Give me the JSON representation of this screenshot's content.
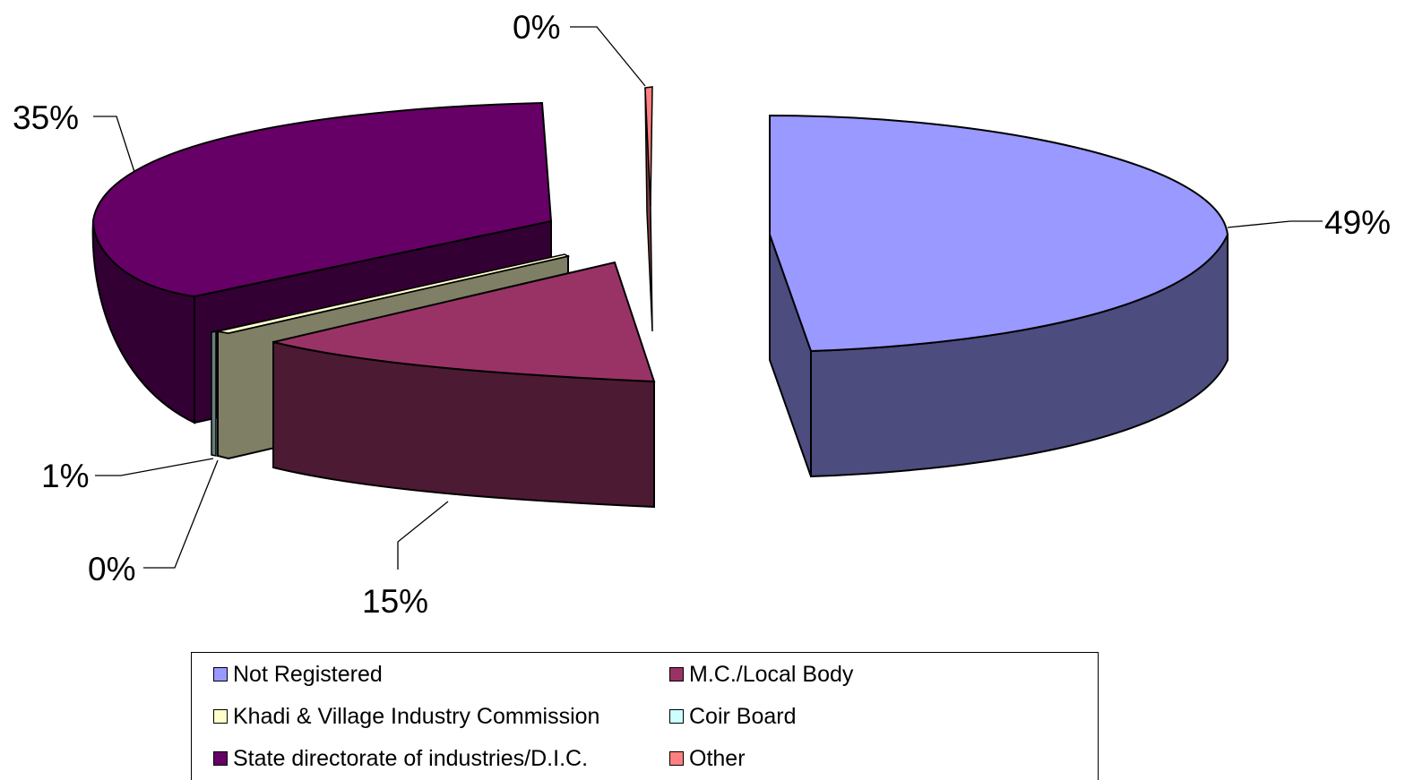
{
  "chart_data": {
    "type": "pie",
    "style": "3d-exploded",
    "title": "",
    "slices": [
      {
        "label": "Not Registered",
        "value": 49,
        "display": "49%",
        "color": "#9999ff",
        "side_color": "#4c4c7f"
      },
      {
        "label": "M.C./Local Body",
        "value": 15,
        "display": "15%",
        "color": "#993366",
        "side_color": "#4c1a33"
      },
      {
        "label": "Khadi & Village Industry Commission",
        "value": 0.4,
        "display": "0%",
        "color": "#ffffcc",
        "side_color": "#7f7f66"
      },
      {
        "label": "Coir Board",
        "value": 0.6,
        "display": "1%",
        "color": "#ccffff",
        "side_color": "#667f7f"
      },
      {
        "label": "State directorate of industries/D.I.C.",
        "value": 35,
        "display": "35%",
        "color": "#660066",
        "side_color": "#330033"
      },
      {
        "label": "Other",
        "value": 0.3,
        "display": "0%",
        "color": "#ff8080",
        "side_color": "#7f4040"
      }
    ],
    "legend_position": "bottom"
  }
}
